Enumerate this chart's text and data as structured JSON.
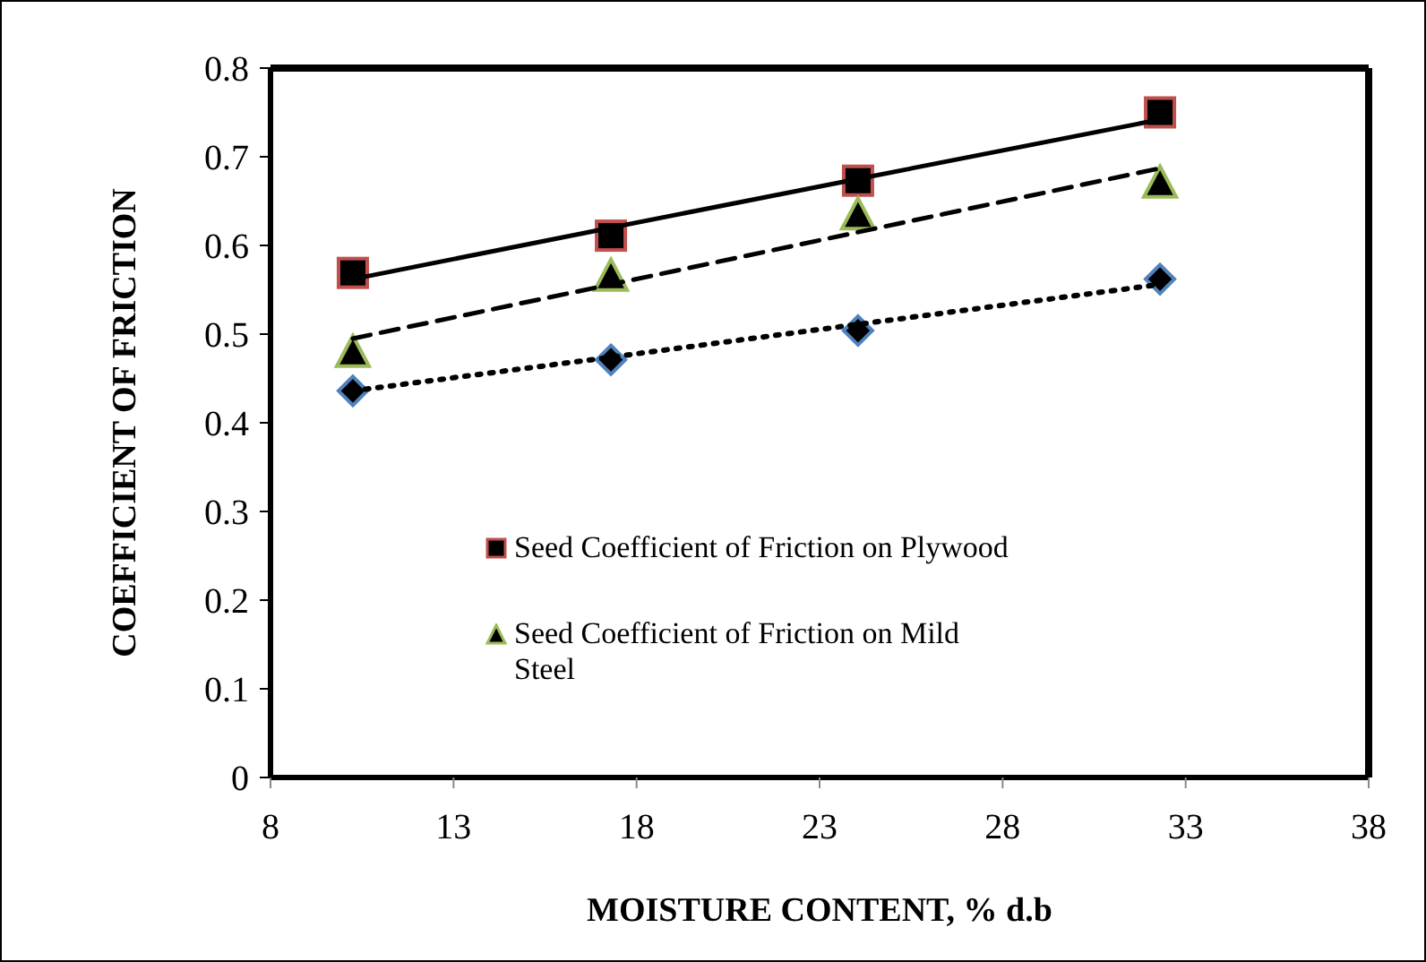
{
  "chart_data": {
    "type": "scatter",
    "xlabel": "MOISTURE CONTENT, % d.b",
    "ylabel": "COEFFICIENT OF FRICTION",
    "x": [
      10.25,
      17.3,
      24.05,
      32.3
    ],
    "xlim": [
      8,
      38
    ],
    "xticks": [
      8,
      13,
      18,
      23,
      28,
      33,
      38
    ],
    "ylim": [
      0,
      0.8
    ],
    "yticks": [
      0,
      0.1,
      0.2,
      0.3,
      0.4,
      0.5,
      0.6,
      0.7,
      0.8
    ],
    "grid": false,
    "legend": "center left",
    "series": [
      {
        "name": "Seed Coefficient of Friction on Plywood",
        "color": "#c0504d",
        "marker": "square",
        "values": [
          0.569,
          0.611,
          0.673,
          0.75
        ]
      },
      {
        "name": "Seed Coefficient of Friction on Mild Steel",
        "color": "#9bbb59",
        "marker": "triangle",
        "values": [
          0.48,
          0.566,
          0.635,
          0.671
        ]
      },
      {
        "color": "#4f81bd",
        "marker": "diamond",
        "values": [
          0.436,
          0.471,
          0.504,
          0.562
        ]
      },
      {
        "type": "line",
        "color": "#000000",
        "line_style": "solid",
        "marker": "none",
        "values": [
          0.562,
          0.62,
          0.675,
          0.742
        ]
      },
      {
        "type": "line",
        "color": "#000000",
        "line_style": "dashed",
        "marker": "none",
        "values": [
          0.495,
          0.556,
          0.615,
          0.687
        ]
      },
      {
        "type": "line",
        "color": "#000000",
        "line_style": "dotted",
        "marker": "none",
        "values": [
          0.436,
          0.474,
          0.511,
          0.556
        ]
      }
    ]
  }
}
